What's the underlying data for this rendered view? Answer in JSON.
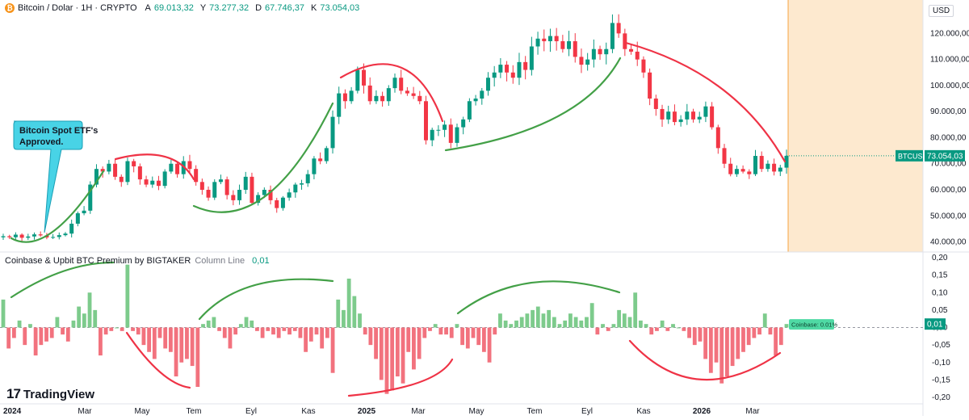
{
  "header": {
    "title": "Bitcoin / Dolar · 1H · CRYPTO",
    "o_label": "A",
    "o_value": "69.013,32",
    "h_label": "Y",
    "h_value": "73.277,32",
    "l_label": "D",
    "l_value": "67.746,37",
    "c_label": "K",
    "c_value": "73.054,03"
  },
  "currency_button": "USD",
  "indicator": {
    "name": "Coinbase & Upbit BTC Premium by BIGTAKER",
    "type": "Column Line",
    "value": "0,01"
  },
  "logo": {
    "mark": "17",
    "text": "TradingView"
  },
  "colors": {
    "up": "#089981",
    "down": "#f23645",
    "col_up": "#7dcb8c",
    "col_down": "#f2727e",
    "future": "#fde9cf",
    "arc_green": "#43a047",
    "arc_red": "#ef3346"
  },
  "chart_data": [
    {
      "type": "candlestick",
      "title": "Bitcoin / Dolar · 1H · CRYPTO",
      "ylim": [
        38000,
        126000
      ],
      "price_ticks": [
        40000,
        50000,
        60000,
        70000,
        80000,
        90000,
        100000,
        110000,
        120000
      ],
      "price_tick_labels": [
        "40.000,00",
        "50.000,00",
        "60.000,00",
        "70.000,00",
        "80.000,00",
        "90.000,00",
        "100.000,00",
        "110.000,00",
        "120.000,00"
      ],
      "last_price": {
        "symbol": "BTCUSD",
        "value": 73054.03,
        "label": "73.054,03"
      },
      "time_labels": [
        "2024",
        "Mar",
        "May",
        "Tem",
        "Eyl",
        "Kas",
        "2025",
        "Mar",
        "May",
        "Tem",
        "Eyl",
        "Kas",
        "2026",
        "Mar"
      ],
      "time_label_bold": [
        true,
        false,
        false,
        false,
        false,
        false,
        true,
        false,
        false,
        false,
        false,
        false,
        true,
        false
      ],
      "closes": [
        42200,
        41800,
        42800,
        41600,
        42100,
        42900,
        42500,
        41700,
        41900,
        42600,
        43200,
        47000,
        51000,
        52000,
        62000,
        68000,
        67000,
        70000,
        65000,
        63000,
        71000,
        69000,
        64000,
        62000,
        63500,
        61500,
        67000,
        70000,
        66000,
        71000,
        68000,
        63000,
        60000,
        57000,
        63000,
        64000,
        58000,
        56000,
        60000,
        65000,
        55000,
        58000,
        60000,
        56000,
        53000,
        57000,
        59000,
        62000,
        62500,
        66000,
        72000,
        71000,
        76000,
        88000,
        97000,
        94000,
        98000,
        106000,
        100000,
        94000,
        96000,
        94000,
        99000,
        103000,
        98000,
        97000,
        96000,
        94000,
        79000,
        83000,
        83000,
        85000,
        78000,
        84000,
        87000,
        94000,
        95000,
        98000,
        103000,
        105000,
        108000,
        105000,
        103000,
        109000,
        106000,
        115000,
        118000,
        117000,
        119000,
        117000,
        114000,
        117000,
        111000,
        108000,
        110000,
        114000,
        112000,
        114000,
        124000,
        120000,
        114000,
        113000,
        110000,
        105000,
        95000,
        91000,
        87000,
        90000,
        86000,
        87000,
        90000,
        87000,
        88000,
        92000,
        84000,
        76000,
        70000,
        66000,
        68000,
        67000,
        66000,
        73000,
        68000,
        70000,
        67000,
        68500,
        73054
      ],
      "highs_note": "derived from closes with wick spread"
    },
    {
      "type": "bar",
      "title": "Coinbase & Upbit BTC Premium by BIGTAKER Column Line",
      "ylim": [
        -0.2,
        0.2
      ],
      "ticks": [
        0.2,
        0.15,
        0.1,
        0.05,
        0,
        -0.05,
        -0.1,
        -0.15,
        -0.2
      ],
      "tick_labels": [
        "0,20",
        "0,15",
        "0,10",
        "0,05",
        "0,00",
        "-0,05",
        "-0,10",
        "-0,15",
        "-0,20"
      ],
      "last_value": {
        "value": 0.01,
        "label": "0,01"
      },
      "callout": "Coinbase: 0.01%",
      "values": [
        0.08,
        -0.06,
        -0.03,
        0.02,
        -0.05,
        0.01,
        -0.08,
        -0.05,
        -0.04,
        -0.03,
        0.03,
        -0.02,
        -0.04,
        0.02,
        0.06,
        0.04,
        0.1,
        0.05,
        -0.08,
        -0.02,
        -0.01,
        0.0,
        -0.01,
        0.18,
        -0.01,
        -0.02,
        -0.05,
        -0.07,
        -0.09,
        -0.03,
        -0.06,
        -0.07,
        -0.14,
        -0.1,
        -0.09,
        -0.11,
        -0.17,
        0.01,
        0.02,
        0.03,
        -0.01,
        -0.03,
        -0.06,
        -0.02,
        0.01,
        0.03,
        0.02,
        -0.01,
        -0.03,
        -0.01,
        -0.02,
        -0.03,
        -0.01,
        -0.02,
        -0.01,
        -0.03,
        -0.07,
        -0.04,
        -0.02,
        -0.06,
        -0.03,
        -0.13,
        0.08,
        0.05,
        0.14,
        0.09,
        0.04,
        -0.02,
        -0.05,
        -0.09,
        -0.15,
        -0.19,
        -0.18,
        -0.14,
        -0.16,
        -0.07,
        -0.12,
        -0.09,
        -0.03,
        -0.01,
        0.01,
        -0.02,
        -0.02,
        -0.03,
        0.01,
        -0.05,
        -0.06,
        -0.03,
        -0.05,
        -0.07,
        -0.1,
        -0.02,
        0.04,
        0.02,
        0.01,
        0.02,
        0.03,
        0.04,
        0.05,
        0.06,
        0.04,
        0.05,
        0.03,
        0.01,
        0.02,
        0.04,
        0.03,
        0.02,
        0.03,
        0.07,
        -0.02,
        0.01,
        -0.01,
        0.01,
        0.05,
        0.04,
        0.03,
        0.1,
        0.02,
        0.01,
        -0.02,
        -0.01,
        0.02,
        -0.01,
        0.01,
        0.0,
        -0.01,
        -0.03,
        -0.05,
        -0.04,
        -0.09,
        -0.13,
        -0.1,
        -0.16,
        -0.14,
        -0.11,
        -0.09,
        -0.07,
        -0.05,
        -0.03,
        -0.02,
        0.04,
        -0.02,
        -0.08,
        -0.05,
        0.01
      ]
    }
  ],
  "annotations": {
    "etf_callout_line1": "Bitcoin Spot ETF's",
    "etf_callout_line2": "Approved."
  }
}
